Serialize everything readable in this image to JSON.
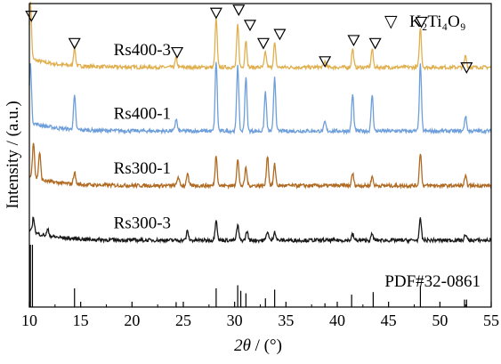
{
  "chart_data": {
    "type": "line",
    "xlabel_symbol": "2θ",
    "xlabel_rest": " / (°)",
    "ylabel": "Intensity / (a.u.)",
    "xlim": [
      10,
      55
    ],
    "xticks": [
      10,
      15,
      20,
      25,
      30,
      35,
      40,
      45,
      50,
      55
    ],
    "y_tick_labels": false,
    "legend": {
      "marker": "▽",
      "label": "K₂Ti₄O₉",
      "position": "top-right"
    },
    "series": [
      {
        "name": "Rs400-3",
        "color": "#E0B050",
        "baseline": 0.79,
        "peaks": [
          [
            10.1,
            0.19
          ],
          [
            14.4,
            0.06
          ],
          [
            24.3,
            0.03
          ],
          [
            28.2,
            0.16
          ],
          [
            30.3,
            0.14
          ],
          [
            31.1,
            0.09
          ],
          [
            33.0,
            0.05
          ],
          [
            33.9,
            0.08
          ],
          [
            38.8,
            0.02
          ],
          [
            41.5,
            0.06
          ],
          [
            43.4,
            0.06
          ],
          [
            48.1,
            0.13
          ],
          [
            52.5,
            0.04
          ]
        ]
      },
      {
        "name": "Rs400-1",
        "color": "#6E9FDA",
        "baseline": 0.58,
        "peaks": [
          [
            10.1,
            0.2
          ],
          [
            14.4,
            0.11
          ],
          [
            24.3,
            0.04
          ],
          [
            28.2,
            0.23
          ],
          [
            30.3,
            0.22
          ],
          [
            31.1,
            0.18
          ],
          [
            33.0,
            0.13
          ],
          [
            33.9,
            0.18
          ],
          [
            38.8,
            0.03
          ],
          [
            41.5,
            0.12
          ],
          [
            43.4,
            0.12
          ],
          [
            48.1,
            0.22
          ],
          [
            52.5,
            0.05
          ]
        ]
      },
      {
        "name": "Rs300-1",
        "color": "#B06A22",
        "baseline": 0.4,
        "peaks": [
          [
            10.4,
            0.12
          ],
          [
            11.0,
            0.09
          ],
          [
            14.4,
            0.04
          ],
          [
            24.5,
            0.03
          ],
          [
            25.4,
            0.04
          ],
          [
            28.2,
            0.1
          ],
          [
            30.3,
            0.09
          ],
          [
            31.1,
            0.06
          ],
          [
            33.2,
            0.1
          ],
          [
            33.9,
            0.07
          ],
          [
            41.5,
            0.04
          ],
          [
            43.4,
            0.03
          ],
          [
            48.1,
            0.11
          ],
          [
            52.5,
            0.03
          ]
        ]
      },
      {
        "name": "Rs300-3",
        "color": "#1A1A1A",
        "baseline": 0.22,
        "peaks": [
          [
            10.4,
            0.05
          ],
          [
            11.8,
            0.02
          ],
          [
            25.4,
            0.03
          ],
          [
            28.2,
            0.07
          ],
          [
            30.3,
            0.05
          ],
          [
            31.2,
            0.03
          ],
          [
            33.2,
            0.03
          ],
          [
            33.9,
            0.03
          ],
          [
            41.5,
            0.02
          ],
          [
            43.4,
            0.02
          ],
          [
            48.1,
            0.07
          ],
          [
            52.5,
            0.02
          ]
        ]
      }
    ],
    "marker_positions": [
      [
        10.2,
        0.96
      ],
      [
        14.4,
        0.87
      ],
      [
        24.4,
        0.84
      ],
      [
        28.2,
        0.97
      ],
      [
        30.4,
        0.98
      ],
      [
        31.5,
        0.93
      ],
      [
        32.8,
        0.87
      ],
      [
        34.4,
        0.9
      ],
      [
        38.8,
        0.81
      ],
      [
        41.6,
        0.88
      ],
      [
        43.7,
        0.87
      ],
      [
        48.2,
        0.94
      ],
      [
        52.6,
        0.79
      ]
    ],
    "reference": {
      "label": "PDF#32-0861",
      "lines": [
        [
          10.1,
          1.0
        ],
        [
          10.3,
          1.0
        ],
        [
          14.4,
          0.3
        ],
        [
          24.3,
          0.08
        ],
        [
          28.2,
          0.3
        ],
        [
          30.3,
          0.35
        ],
        [
          30.6,
          0.26
        ],
        [
          31.1,
          0.22
        ],
        [
          33.0,
          0.14
        ],
        [
          33.9,
          0.28
        ],
        [
          38.8,
          0.06
        ],
        [
          41.4,
          0.2
        ],
        [
          43.5,
          0.24
        ],
        [
          48.1,
          0.34
        ],
        [
          52.4,
          0.12
        ],
        [
          52.6,
          0.12
        ]
      ]
    }
  }
}
